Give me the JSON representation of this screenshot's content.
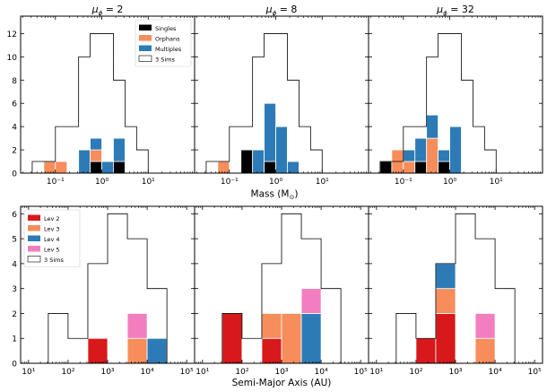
{
  "figure": {
    "row1_xlabel": "Mass   (M",
    "row1_xlabel_sub": "⊙",
    "row1_xlabel_close": ")",
    "row2_xlabel": "Semi-Major Axis    (AU)"
  },
  "colors": {
    "Singles": "#000000",
    "Orphans": "#f78d5b",
    "Multiples": "#2d7bb6",
    "Lev 2": "#d7191c",
    "Lev 3": "#f78d5b",
    "Lev 4": "#2d7bb6",
    "Lev 5": "#f27ec0",
    "3 Sims": "#ffffff"
  },
  "chart_data": [
    {
      "type": "bar",
      "panel": "mass-mu2",
      "title_prefix": "μ",
      "title_sub": "ϕ",
      "title_suffix": " = 2",
      "x_scale": "log",
      "xlim_log10": [
        -1.75,
        2.0
      ],
      "bin_edges_log10": [
        -1.5,
        -1.25,
        -1.0,
        -0.75,
        -0.5,
        -0.25,
        0.0,
        0.25,
        0.5,
        0.75,
        1.0
      ],
      "ylim": [
        0,
        13.5
      ],
      "yticks": [
        0,
        2,
        4,
        6,
        8,
        10,
        12
      ],
      "show_y_labels": true,
      "x_ticks": [
        {
          "p": -1,
          "label": "10⁻¹"
        },
        {
          "p": 0,
          "label": "10⁰"
        },
        {
          "p": 1,
          "label": "10¹"
        }
      ],
      "outline": [
        1,
        1,
        4,
        4,
        10,
        12,
        12,
        8,
        4,
        2
      ],
      "stack_order": [
        "Singles",
        "Orphans",
        "Multiples"
      ],
      "series": [
        {
          "name": "Singles",
          "values": [
            0,
            0,
            0,
            0,
            0,
            1,
            0,
            1,
            0,
            0
          ]
        },
        {
          "name": "Orphans",
          "values": [
            0,
            1,
            1,
            0,
            0,
            1,
            0,
            0,
            0,
            0
          ]
        },
        {
          "name": "Multiples",
          "values": [
            0,
            0,
            0,
            0,
            2,
            1,
            1,
            2,
            0,
            0
          ]
        }
      ],
      "legend": {
        "position": "top-right",
        "entries": [
          "Singles",
          "Orphans",
          "Multiples",
          "3 Sims"
        ]
      }
    },
    {
      "type": "bar",
      "panel": "mass-mu8",
      "title_prefix": "μ",
      "title_sub": "ϕ",
      "title_suffix": " = 8",
      "x_scale": "log",
      "xlim_log10": [
        -1.75,
        2.0
      ],
      "bin_edges_log10": [
        -1.5,
        -1.25,
        -1.0,
        -0.75,
        -0.5,
        -0.25,
        0.0,
        0.25,
        0.5,
        0.75,
        1.0
      ],
      "ylim": [
        0,
        13.5
      ],
      "yticks": [
        0,
        2,
        4,
        6,
        8,
        10,
        12
      ],
      "show_y_labels": false,
      "x_ticks": [
        {
          "p": -1,
          "label": "10⁻¹"
        },
        {
          "p": 0,
          "label": "10⁰"
        },
        {
          "p": 1,
          "label": "10¹"
        }
      ],
      "outline": [
        1,
        1,
        4,
        4,
        10,
        12,
        12,
        8,
        4,
        2
      ],
      "stack_order": [
        "Singles",
        "Orphans",
        "Multiples"
      ],
      "series": [
        {
          "name": "Singles",
          "values": [
            0,
            0,
            0,
            2,
            0,
            1,
            0,
            0,
            0,
            0
          ]
        },
        {
          "name": "Orphans",
          "values": [
            0,
            1,
            0,
            0,
            0,
            0,
            0,
            0,
            0,
            0
          ]
        },
        {
          "name": "Multiples",
          "values": [
            0,
            0,
            0,
            0,
            2,
            5,
            4,
            1,
            0,
            0
          ]
        }
      ]
    },
    {
      "type": "bar",
      "panel": "mass-mu32",
      "title_prefix": "μ",
      "title_sub": "ϕ",
      "title_suffix": " = 32",
      "x_scale": "log",
      "xlim_log10": [
        -1.75,
        2.0
      ],
      "bin_edges_log10": [
        -1.5,
        -1.25,
        -1.0,
        -0.75,
        -0.5,
        -0.25,
        0.0,
        0.25,
        0.5,
        0.75,
        1.0
      ],
      "ylim": [
        0,
        13.5
      ],
      "yticks": [
        0,
        2,
        4,
        6,
        8,
        10,
        12
      ],
      "show_y_labels": false,
      "x_ticks": [
        {
          "p": -1,
          "label": "10⁻¹"
        },
        {
          "p": 0,
          "label": "10⁰"
        },
        {
          "p": 1,
          "label": "10¹"
        }
      ],
      "outline": [
        1,
        1,
        4,
        4,
        10,
        12,
        12,
        8,
        4,
        2
      ],
      "stack_order": [
        "Singles",
        "Orphans",
        "Multiples"
      ],
      "series": [
        {
          "name": "Singles",
          "values": [
            1,
            0,
            0,
            1,
            0,
            1,
            0,
            0,
            0,
            0
          ]
        },
        {
          "name": "Orphans",
          "values": [
            0,
            2,
            1,
            0,
            3,
            0,
            0,
            0,
            0,
            0
          ]
        },
        {
          "name": "Multiples",
          "values": [
            0,
            0,
            1,
            2,
            2,
            1,
            4,
            0,
            0,
            0
          ]
        }
      ]
    },
    {
      "type": "bar",
      "panel": "sma-mu2",
      "x_scale": "log",
      "xlim_log10": [
        0.8,
        5.2
      ],
      "bin_edges_log10": [
        1,
        1.5,
        2,
        2.5,
        3,
        3.5,
        4,
        4.5,
        5
      ],
      "ylim": [
        0,
        6.3
      ],
      "yticks": [
        0,
        1,
        2,
        3,
        4,
        5,
        6
      ],
      "show_y_labels": true,
      "x_ticks": [
        {
          "p": 1,
          "label": "10¹"
        },
        {
          "p": 2,
          "label": "10²"
        },
        {
          "p": 3,
          "label": "10³"
        },
        {
          "p": 4,
          "label": "10⁴"
        },
        {
          "p": 5,
          "label": "10⁵"
        }
      ],
      "outline": [
        0,
        2,
        1,
        4,
        6,
        5,
        3,
        0
      ],
      "stack_order": [
        "Lev 2",
        "Lev 3",
        "Lev 4",
        "Lev 5"
      ],
      "series": [
        {
          "name": "Lev 2",
          "values": [
            0,
            0,
            0,
            1,
            0,
            0,
            0,
            0
          ]
        },
        {
          "name": "Lev 3",
          "values": [
            0,
            0,
            0,
            0,
            0,
            1,
            0,
            0
          ]
        },
        {
          "name": "Lev 4",
          "values": [
            0,
            0,
            0,
            0,
            0,
            0,
            1,
            0
          ]
        },
        {
          "name": "Lev 5",
          "values": [
            0,
            0,
            0,
            0,
            0,
            1,
            0,
            0
          ]
        }
      ],
      "legend": {
        "position": "top-left",
        "entries": [
          "Lev 2",
          "Lev 3",
          "Lev 4",
          "Lev 5",
          "3 Sims"
        ]
      }
    },
    {
      "type": "bar",
      "panel": "sma-mu8",
      "x_scale": "log",
      "xlim_log10": [
        0.8,
        5.2
      ],
      "bin_edges_log10": [
        1,
        1.5,
        2,
        2.5,
        3,
        3.5,
        4,
        4.5,
        5
      ],
      "ylim": [
        0,
        6.3
      ],
      "yticks": [
        0,
        1,
        2,
        3,
        4,
        5,
        6
      ],
      "show_y_labels": false,
      "x_ticks": [
        {
          "p": 1,
          "label": "10¹"
        },
        {
          "p": 2,
          "label": "10²"
        },
        {
          "p": 3,
          "label": "10³"
        },
        {
          "p": 4,
          "label": "10⁴"
        },
        {
          "p": 5,
          "label": "10⁵"
        }
      ],
      "outline": [
        0,
        2,
        1,
        4,
        6,
        5,
        3,
        0
      ],
      "stack_order": [
        "Lev 2",
        "Lev 3",
        "Lev 4",
        "Lev 5"
      ],
      "series": [
        {
          "name": "Lev 2",
          "values": [
            0,
            2,
            0,
            1,
            0,
            0,
            0,
            0
          ]
        },
        {
          "name": "Lev 3",
          "values": [
            0,
            0,
            0,
            1,
            2,
            0,
            0,
            0
          ]
        },
        {
          "name": "Lev 4",
          "values": [
            0,
            0,
            0,
            0,
            0,
            2,
            0,
            0
          ]
        },
        {
          "name": "Lev 5",
          "values": [
            0,
            0,
            0,
            0,
            0,
            1,
            0,
            0
          ]
        }
      ]
    },
    {
      "type": "bar",
      "panel": "sma-mu32",
      "x_scale": "log",
      "xlim_log10": [
        0.8,
        5.2
      ],
      "bin_edges_log10": [
        1,
        1.5,
        2,
        2.5,
        3,
        3.5,
        4,
        4.5,
        5
      ],
      "ylim": [
        0,
        6.3
      ],
      "yticks": [
        0,
        1,
        2,
        3,
        4,
        5,
        6
      ],
      "show_y_labels": false,
      "x_ticks": [
        {
          "p": 1,
          "label": "10¹"
        },
        {
          "p": 2,
          "label": "10²"
        },
        {
          "p": 3,
          "label": "10³"
        },
        {
          "p": 4,
          "label": "10⁴"
        },
        {
          "p": 5,
          "label": "10⁵"
        }
      ],
      "outline": [
        0,
        2,
        1,
        4,
        6,
        5,
        3,
        0
      ],
      "stack_order": [
        "Lev 2",
        "Lev 3",
        "Lev 4",
        "Lev 5"
      ],
      "series": [
        {
          "name": "Lev 2",
          "values": [
            0,
            0,
            1,
            2,
            0,
            0,
            0,
            0
          ]
        },
        {
          "name": "Lev 3",
          "values": [
            0,
            0,
            0,
            1,
            0,
            1,
            0,
            0
          ]
        },
        {
          "name": "Lev 4",
          "values": [
            0,
            0,
            0,
            1,
            0,
            0,
            0,
            0
          ]
        },
        {
          "name": "Lev 5",
          "values": [
            0,
            0,
            0,
            0,
            0,
            1,
            0,
            0
          ]
        }
      ]
    }
  ]
}
